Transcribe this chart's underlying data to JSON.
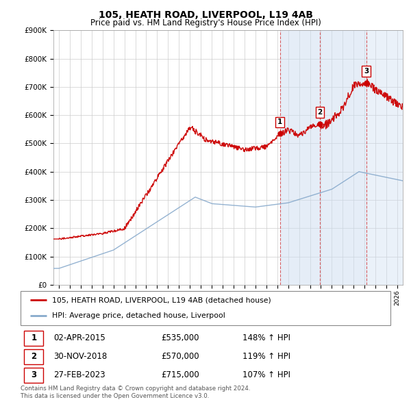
{
  "title": "105, HEATH ROAD, LIVERPOOL, L19 4AB",
  "subtitle": "Price paid vs. HM Land Registry's House Price Index (HPI)",
  "legend_line1": "105, HEATH ROAD, LIVERPOOL, L19 4AB (detached house)",
  "legend_line2": "HPI: Average price, detached house, Liverpool",
  "footer": "Contains HM Land Registry data © Crown copyright and database right 2024.\nThis data is licensed under the Open Government Licence v3.0.",
  "sale_points": [
    {
      "num": 1,
      "date": "02-APR-2015",
      "price": 535000,
      "pct": "148% ↑ HPI",
      "x": 2015.25
    },
    {
      "num": 2,
      "date": "30-NOV-2018",
      "price": 570000,
      "pct": "119% ↑ HPI",
      "x": 2018.92
    },
    {
      "num": 3,
      "date": "27-FEB-2023",
      "price": 715000,
      "pct": "107% ↑ HPI",
      "x": 2023.15
    }
  ],
  "ylim": [
    0,
    900000
  ],
  "xlim": [
    1994.5,
    2026.5
  ],
  "red_color": "#cc0000",
  "blue_color": "#88aacc",
  "background_color": "#ffffff",
  "shade_color": "#ccddf0"
}
